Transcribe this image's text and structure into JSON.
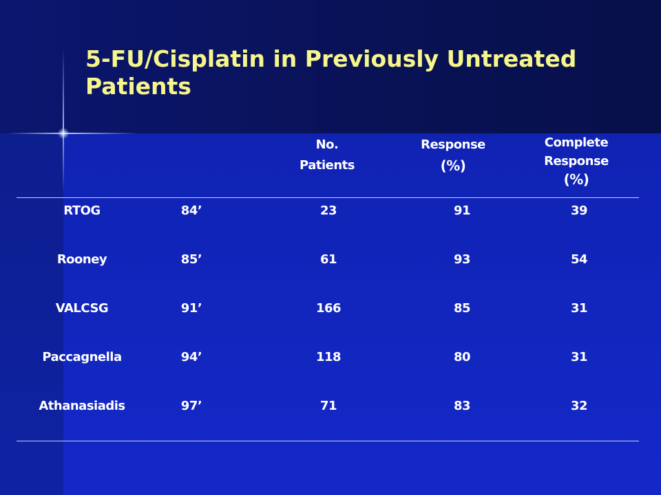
{
  "slide": {
    "title": "5-FU/Cisplatin in Previously Untreated\nPatients"
  },
  "table": {
    "headers": {
      "patients": [
        "No.",
        "Patients"
      ],
      "response": [
        "Response",
        "(%)"
      ],
      "complete_response": [
        "Complete",
        "Response",
        "(%)"
      ]
    },
    "rows": [
      {
        "study": "RTOG",
        "year": "84’",
        "patients": "23",
        "response": "91",
        "complete_response": "39"
      },
      {
        "study": "Rooney",
        "year": "85’",
        "patients": "61",
        "response": "93",
        "complete_response": "54"
      },
      {
        "study": "VALCSG",
        "year": "91’",
        "patients": "166",
        "response": "85",
        "complete_response": "31"
      },
      {
        "study": "Paccagnella",
        "year": "94’",
        "patients": "118",
        "response": "80",
        "complete_response": "31"
      },
      {
        "study": "Athanasiadis",
        "year": "97’",
        "patients": "71",
        "response": "83",
        "complete_response": "32"
      }
    ]
  },
  "colors": {
    "title": "#f7f68a",
    "text": "#ffffff",
    "background": "#1428c8",
    "header_band": "#091256",
    "rule": "#c9d1ff"
  }
}
